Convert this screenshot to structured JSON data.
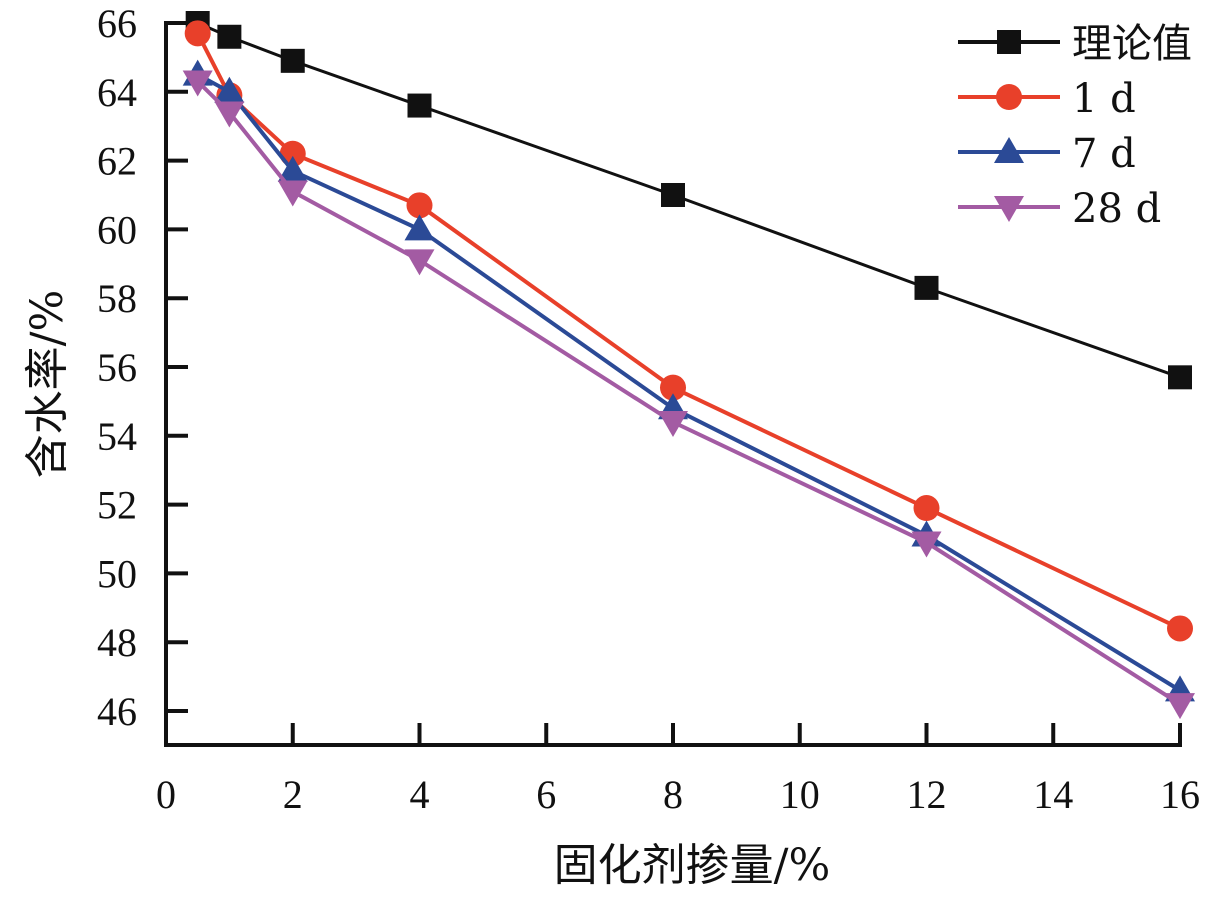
{
  "chart_data": {
    "type": "line",
    "title": "",
    "xlabel": "固化剂掺量/%",
    "ylabel": "含水率/%",
    "xlim": [
      0,
      16
    ],
    "ylim": [
      45,
      66
    ],
    "xticks": [
      0,
      2,
      4,
      6,
      8,
      10,
      12,
      14,
      16
    ],
    "yticks": [
      46,
      48,
      50,
      52,
      54,
      56,
      58,
      60,
      62,
      64,
      66
    ],
    "grid": false,
    "legend_position": "top-right",
    "x": [
      0.5,
      1,
      2,
      4,
      8,
      12,
      16
    ],
    "series": [
      {
        "name": "理论值",
        "marker": "square",
        "color": "#111111",
        "values": [
          66.0,
          65.6,
          64.9,
          63.6,
          61.0,
          58.3,
          55.7
        ]
      },
      {
        "name": "1 d",
        "marker": "circle",
        "color": "#e8402a",
        "values": [
          65.7,
          63.9,
          62.2,
          60.7,
          55.4,
          51.9,
          48.4
        ]
      },
      {
        "name": "7 d",
        "marker": "triangle-up",
        "color": "#2b4a96",
        "values": [
          64.5,
          64.0,
          61.7,
          60.0,
          54.8,
          51.1,
          46.6
        ]
      },
      {
        "name": "28 d",
        "marker": "triangle-down",
        "color": "#a35ba3",
        "values": [
          64.3,
          63.4,
          61.1,
          59.1,
          54.4,
          50.9,
          46.2
        ]
      }
    ]
  }
}
